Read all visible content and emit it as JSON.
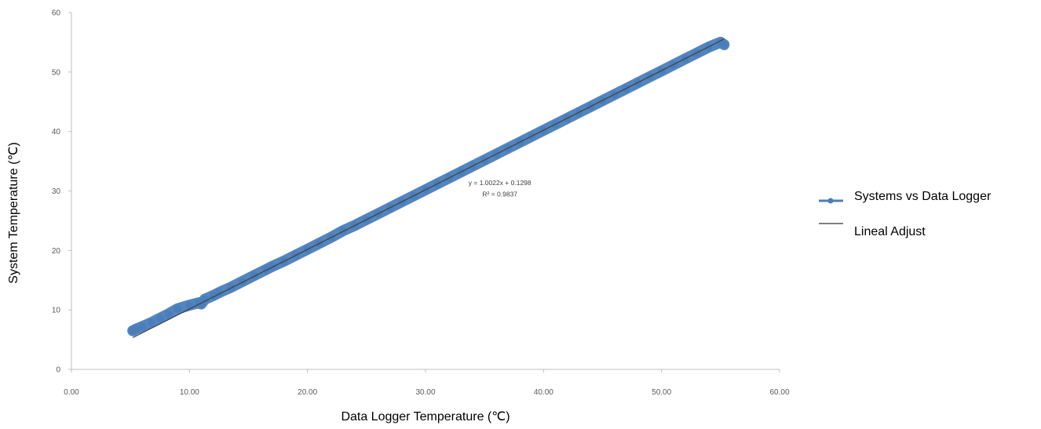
{
  "chart_data": {
    "type": "scatter",
    "xlabel": "Data Logger Temperature (℃)",
    "ylabel": "System Temperature (℃)",
    "xlim": [
      0,
      60
    ],
    "ylim": [
      0,
      60
    ],
    "xticks": [
      "0.00",
      "10.00",
      "20.00",
      "30.00",
      "40.00",
      "50.00",
      "60.00"
    ],
    "yticks": [
      "0",
      "10",
      "20",
      "30",
      "40",
      "50",
      "60"
    ],
    "grid": false,
    "legend_position": "right",
    "series": [
      {
        "name": "Systems vs Data Logger",
        "color": "#4a7ebb",
        "kind": "points",
        "x": [
          5.2,
          5.5,
          6.0,
          6.8,
          7.5,
          8.2,
          9.0,
          10.0,
          10.8,
          11.0,
          11.3,
          12.0,
          12.5,
          13.5,
          14.5,
          15.5,
          16.5,
          17.0,
          18.0,
          19.0,
          20.0,
          21.0,
          22.0,
          23.0,
          24.0,
          25.0,
          26.0,
          27.0,
          28.0,
          29.0,
          30.0,
          31.0,
          32.0,
          33.0,
          34.0,
          35.0,
          36.0,
          37.0,
          38.0,
          39.0,
          40.0,
          41.0,
          42.0,
          43.0,
          44.0,
          45.0,
          46.0,
          47.0,
          48.0,
          49.0,
          50.0,
          51.0,
          52.0,
          53.0,
          54.0,
          55.0,
          55.3
        ],
        "y": [
          6.5,
          6.8,
          7.2,
          7.9,
          8.6,
          9.3,
          10.2,
          10.8,
          11.2,
          11.0,
          11.8,
          12.4,
          12.9,
          13.8,
          14.8,
          15.8,
          16.8,
          17.3,
          18.2,
          19.2,
          20.2,
          21.2,
          22.2,
          23.3,
          24.2,
          25.2,
          26.2,
          27.2,
          28.2,
          29.2,
          30.2,
          31.2,
          32.2,
          33.2,
          34.2,
          35.2,
          36.2,
          37.2,
          38.2,
          39.2,
          40.2,
          41.2,
          42.2,
          43.2,
          44.2,
          45.2,
          46.2,
          47.2,
          48.2,
          49.2,
          50.2,
          51.2,
          52.2,
          53.2,
          54.2,
          55.0,
          54.6
        ]
      },
      {
        "name": "Lineal Adjust",
        "color": "#7f7f7f",
        "kind": "trendline",
        "slope": 1.0022,
        "intercept": 0.1298,
        "x_range": [
          5.2,
          55.3
        ]
      }
    ],
    "annotations": [
      "y = 1.0022x + 0.1298",
      "R² = 0.9837"
    ]
  }
}
